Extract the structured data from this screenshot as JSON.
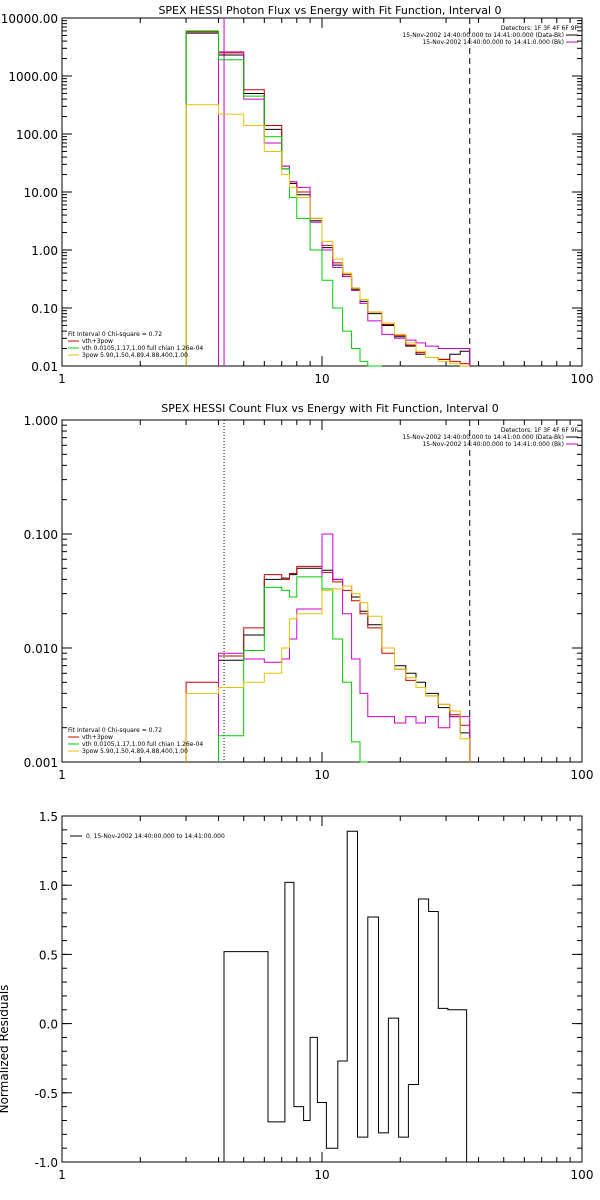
{
  "colors": {
    "black": "#000000",
    "red": "#cc0000",
    "magenta": "#cc00cc",
    "green": "#00cc00",
    "yellow": "#e6c200"
  },
  "chart_data": [
    {
      "type": "line",
      "title": "SPEX HESSI Photon Flux vs Energy with Fit Function, Interval 0",
      "xlabel": "",
      "ylabel": "",
      "xscale": "log",
      "yscale": "log",
      "xlim": [
        1,
        100
      ],
      "ylim": [
        0.01,
        10000
      ],
      "x_tick_labels": [
        "1",
        "10",
        "100"
      ],
      "y_tick_labels": [
        "0.01",
        "0.10",
        "1.00",
        "10.00",
        "100.00",
        "1000.00",
        "10000.00"
      ],
      "header": {
        "detectors": "Detectors: 1F 3F 4F 6F 9F",
        "line1": "15-Nov-2002 14:40:00.000 to 14:41:00.000 (Data-Bk)",
        "line2": "15-Nov-2002 14:40:00.000 to 14:41:0.000 (Bk)"
      },
      "fit_legend": {
        "title": "Fit Interval 0   Chi-square = 0.72",
        "items": [
          "vth+3pow",
          "vth 0.0105,1.17,1.00  full chian 1.26e-04",
          "3pow 5.90,1.50,4.89,4.88,400,1.00"
        ]
      },
      "vlines": [
        {
          "x": 4.2,
          "style": "solid",
          "color": "magenta"
        },
        {
          "x": 37,
          "style": "dashed",
          "color": "black"
        }
      ],
      "edges": [
        3,
        3.5,
        4,
        4.5,
        5,
        5.5,
        6,
        6.5,
        7,
        7.5,
        8,
        9,
        10,
        11,
        12,
        13,
        14,
        15,
        17,
        19,
        21,
        23,
        25,
        28,
        31,
        34,
        37
      ],
      "series": [
        {
          "name": "Data-Bk",
          "color": "black",
          "values": [
            5500,
            5500,
            2300,
            2300,
            500,
            500,
            120,
            120,
            25,
            14,
            9,
            3.2,
            1.1,
            0.55,
            0.35,
            0.21,
            0.13,
            0.08,
            0.05,
            0.032,
            0.022,
            0.016,
            0.014,
            0.013,
            0.016,
            0.018
          ]
        },
        {
          "name": "",
          "color": "red",
          "values": [
            5800,
            5800,
            2500,
            2500,
            580,
            580,
            140,
            140,
            28,
            15,
            10,
            3.5,
            1.2,
            0.6,
            0.38,
            0.22,
            0.14,
            0.085,
            0.052,
            0.034,
            0.023,
            0.017,
            0.014,
            0.013,
            0.012,
            0.011
          ]
        },
        {
          "name": "Bk",
          "color": "magenta",
          "values": [
            null,
            null,
            2600,
            2600,
            400,
            400,
            70,
            70,
            28,
            15,
            12,
            3.0,
            1.0,
            0.5,
            0.35,
            0.2,
            0.12,
            0.06,
            0.035,
            0.03,
            0.028,
            0.025,
            0.022,
            0.02,
            0.02,
            0.02
          ]
        },
        {
          "name": "",
          "color": "green",
          "values": [
            6000,
            6000,
            1900,
            1900,
            450,
            450,
            90,
            90,
            25,
            8,
            3.5,
            1.0,
            0.3,
            0.1,
            0.04,
            0.02,
            0.012,
            0.01,
            null,
            null,
            null,
            null,
            null,
            null,
            null,
            null
          ]
        },
        {
          "name": "",
          "color": "yellow",
          "values": [
            320,
            320,
            220,
            220,
            140,
            140,
            50,
            50,
            20,
            12,
            8,
            3.5,
            1.4,
            0.7,
            0.4,
            0.22,
            0.14,
            0.085,
            0.055,
            0.035,
            0.025,
            0.018,
            0.014,
            0.012,
            0.011,
            0.01
          ]
        }
      ]
    },
    {
      "type": "line",
      "title": "SPEX HESSI Count Flux vs Energy with Fit Function, Interval 0",
      "xlabel": "",
      "ylabel": "",
      "xscale": "log",
      "yscale": "log",
      "xlim": [
        1,
        100
      ],
      "ylim": [
        0.001,
        1.0
      ],
      "x_tick_labels": [
        "1",
        "10",
        "100"
      ],
      "y_tick_labels": [
        "0.001",
        "0.010",
        "0.100",
        "1.000"
      ],
      "header": {
        "detectors": "Detectors: 1F 3F 4F 6F 9F",
        "line1": "15-Nov-2002 14:40:00.000 to 14:41:00.000 (Data-Bk)",
        "line2": "15-Nov-2002 14:40:00.000 to 14:41:0.000 (Bk)"
      },
      "fit_legend": {
        "title": "Fit Interval 0   Chi-square = 0.72",
        "items": [
          "vth+3pow",
          "vth 0.0105,1.17,1.00  full chian 1.26e-04",
          "3pow 5.90,1.50,4.89,4.88,400,1.00"
        ]
      },
      "vlines": [
        {
          "x": 4.2,
          "style": "dotted",
          "color": "black"
        },
        {
          "x": 37,
          "style": "dashed",
          "color": "black"
        }
      ],
      "edges": [
        3,
        3.5,
        4,
        4.5,
        5,
        5.5,
        6,
        6.5,
        7,
        7.5,
        8,
        9,
        10,
        11,
        12,
        13,
        14,
        15,
        17,
        19,
        21,
        23,
        25,
        28,
        31,
        34,
        37
      ],
      "series": [
        {
          "name": "Data-Bk",
          "color": "black",
          "values": [
            null,
            null,
            0.0078,
            0.0078,
            0.013,
            0.013,
            0.04,
            0.04,
            0.041,
            0.044,
            0.05,
            0.05,
            0.048,
            0.04,
            0.035,
            0.028,
            0.021,
            0.016,
            0.01,
            0.007,
            0.006,
            0.005,
            0.004,
            0.003,
            0.0025,
            0.0018
          ]
        },
        {
          "name": "",
          "color": "red",
          "values": [
            0.005,
            0.005,
            0.0085,
            0.0085,
            0.015,
            0.015,
            0.044,
            0.044,
            0.04,
            0.045,
            0.052,
            0.052,
            0.046,
            0.038,
            0.032,
            0.026,
            0.02,
            0.015,
            0.009,
            0.0065,
            0.0052,
            0.0045,
            0.0038,
            0.0032,
            0.0026,
            0.0021
          ]
        },
        {
          "name": "Bk",
          "color": "magenta",
          "values": [
            null,
            null,
            0.009,
            0.009,
            0.008,
            0.008,
            0.0075,
            0.0075,
            0.008,
            0.012,
            0.022,
            0.022,
            0.1,
            0.04,
            0.02,
            0.008,
            0.004,
            0.0025,
            0.0025,
            0.0022,
            0.0025,
            0.0022,
            0.0025,
            0.002,
            0.0025,
            0.0025
          ]
        },
        {
          "name": "",
          "color": "green",
          "values": [
            null,
            null,
            0.0017,
            0.0017,
            0.0095,
            0.0095,
            0.034,
            0.034,
            0.032,
            0.028,
            0.042,
            0.042,
            0.033,
            0.012,
            0.005,
            0.0015,
            0.001,
            null,
            null,
            null,
            null,
            null,
            null,
            null,
            null,
            null
          ]
        },
        {
          "name": "",
          "color": "yellow",
          "values": [
            0.004,
            0.004,
            0.0045,
            0.0045,
            0.005,
            0.005,
            0.006,
            0.006,
            0.01,
            0.018,
            0.02,
            0.02,
            0.032,
            0.033,
            0.035,
            0.03,
            0.025,
            0.019,
            0.01,
            0.0065,
            0.0055,
            0.0045,
            0.0038,
            0.0032,
            0.0028,
            0.0016
          ]
        }
      ]
    },
    {
      "type": "line",
      "title": "",
      "xlabel": "",
      "ylabel": "Normalized Residuals",
      "xscale": "log",
      "yscale": "linear",
      "xlim": [
        1,
        100
      ],
      "ylim": [
        -1.0,
        1.5
      ],
      "x_tick_labels": [
        "1",
        "10",
        "100"
      ],
      "y_tick_labels": [
        "-1.0",
        "-0.5",
        "0.0",
        "0.5",
        "1.0",
        "1.5"
      ],
      "legend": "0. 15-Nov-2002 14:40:00.000 to 14:41:00.000",
      "edges": [
        4.2,
        5.2,
        6.2,
        7.2,
        7.8,
        8.5,
        9.0,
        9.6,
        10.4,
        11.5,
        12.5,
        13.7,
        15,
        16.5,
        18,
        19.7,
        21.5,
        23.5,
        25.7,
        28,
        30.5,
        33,
        36
      ],
      "series": [
        {
          "name": "",
          "color": "black",
          "values": [
            0.52,
            0.52,
            -0.71,
            1.02,
            -0.6,
            -0.7,
            -0.1,
            -0.57,
            -0.9,
            -0.27,
            1.39,
            -0.82,
            0.77,
            -0.79,
            0.04,
            -0.82,
            -0.44,
            0.9,
            0.81,
            0.11,
            0.1,
            0.1
          ]
        }
      ]
    }
  ]
}
